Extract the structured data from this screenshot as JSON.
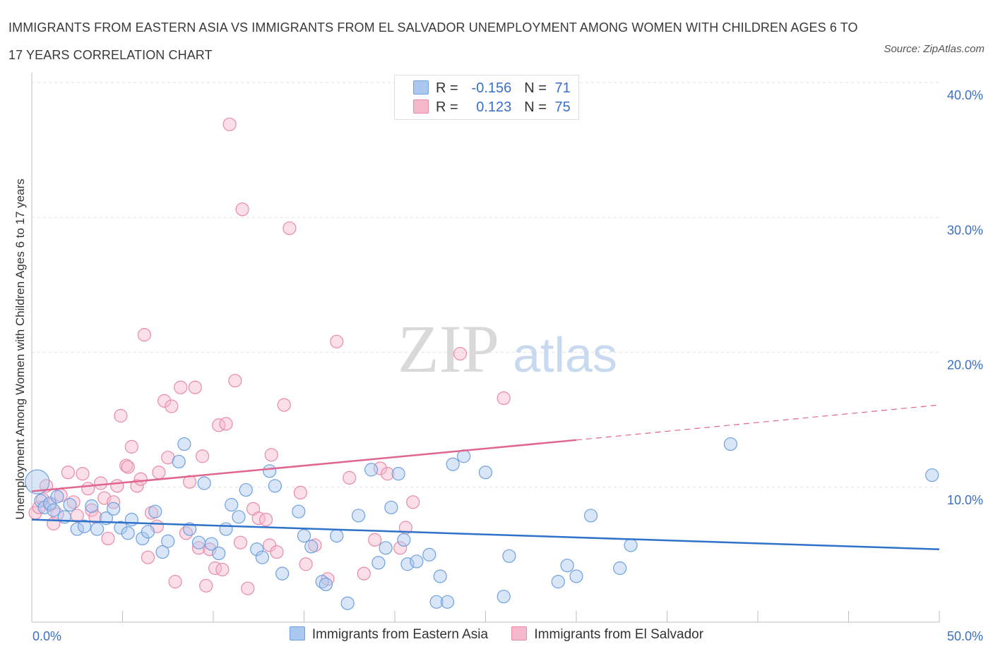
{
  "header": {
    "title": "IMMIGRANTS FROM EASTERN ASIA VS IMMIGRANTS FROM EL SALVADOR UNEMPLOYMENT AMONG WOMEN WITH CHILDREN AGES 6 TO 17 YEARS CORRELATION CHART",
    "source": "Source: ZipAtlas.com"
  },
  "watermark": {
    "zip": "ZIP",
    "atlas": "atlas"
  },
  "legend": {
    "rows": [
      {
        "r_label": "R =",
        "r_value": "-0.156",
        "n_label": "N =",
        "n_value": "71",
        "color": "#aac8f0"
      },
      {
        "r_label": "R =",
        "r_value": "0.123",
        "n_label": "N =",
        "n_value": "75",
        "color": "#f6b8cb"
      }
    ]
  },
  "colors": {
    "blue_fill": "#aac8f0",
    "blue_stroke": "#6fa0de",
    "blue_line": "#2e72c9",
    "pink_fill": "#f6b8cb",
    "pink_stroke": "#e98aa8",
    "pink_line": "#e0668f",
    "axis_text": "#3b6fc4",
    "grid": "#dde1e8"
  },
  "chart_data": {
    "type": "scatter",
    "title": "IMMIGRANTS FROM EASTERN ASIA VS IMMIGRANTS FROM EL SALVADOR UNEMPLOYMENT AMONG WOMEN WITH CHILDREN AGES 6 TO 17 YEARS CORRELATION CHART",
    "xlabel": "",
    "ylabel": "Unemployment Among Women with Children Ages 6 to 17 years",
    "xlim": [
      0,
      50
    ],
    "ylim": [
      0,
      40
    ],
    "x_tick_labels": [
      {
        "value": 0,
        "label": "0.0%"
      },
      {
        "value": 50,
        "label": "50.0%"
      }
    ],
    "y_tick_labels": [
      {
        "value": 10,
        "label": "10.0%"
      },
      {
        "value": 20,
        "label": "20.0%"
      },
      {
        "value": 30,
        "label": "30.0%"
      },
      {
        "value": 40,
        "label": "40.0%"
      }
    ],
    "grid": true,
    "legend_position": "bottom",
    "series": [
      {
        "name": "Immigrants from Eastern Asia",
        "color": "#aac8f0",
        "r": -0.156,
        "n": 71,
        "trend": {
          "x": [
            0,
            50
          ],
          "y": [
            7.6,
            5.4
          ]
        },
        "points": [
          [
            0.3,
            10.4
          ],
          [
            0.5,
            9.0
          ],
          [
            0.7,
            8.5
          ],
          [
            1.0,
            8.8
          ],
          [
            1.2,
            8.3
          ],
          [
            1.4,
            9.3
          ],
          [
            1.8,
            7.8
          ],
          [
            2.1,
            8.7
          ],
          [
            2.5,
            6.9
          ],
          [
            2.9,
            7.1
          ],
          [
            3.3,
            8.6
          ],
          [
            3.6,
            6.9
          ],
          [
            4.1,
            7.7
          ],
          [
            4.5,
            8.4
          ],
          [
            4.9,
            7.0
          ],
          [
            5.3,
            6.6
          ],
          [
            5.5,
            7.6
          ],
          [
            6.1,
            6.2
          ],
          [
            6.4,
            6.7
          ],
          [
            6.8,
            8.2
          ],
          [
            7.2,
            5.2
          ],
          [
            7.5,
            6.0
          ],
          [
            8.1,
            11.9
          ],
          [
            8.4,
            13.2
          ],
          [
            8.7,
            6.9
          ],
          [
            9.2,
            5.9
          ],
          [
            9.5,
            10.3
          ],
          [
            9.9,
            5.8
          ],
          [
            10.3,
            5.1
          ],
          [
            10.7,
            6.9
          ],
          [
            11.0,
            8.7
          ],
          [
            11.4,
            7.8
          ],
          [
            11.8,
            9.8
          ],
          [
            12.4,
            5.4
          ],
          [
            12.7,
            4.8
          ],
          [
            13.1,
            11.2
          ],
          [
            13.4,
            10.1
          ],
          [
            13.8,
            3.6
          ],
          [
            14.7,
            8.2
          ],
          [
            15.0,
            6.4
          ],
          [
            15.4,
            5.6
          ],
          [
            16.0,
            3.0
          ],
          [
            16.2,
            2.8
          ],
          [
            16.8,
            6.4
          ],
          [
            17.4,
            1.4
          ],
          [
            18.0,
            7.9
          ],
          [
            18.7,
            11.3
          ],
          [
            19.1,
            4.4
          ],
          [
            19.5,
            5.5
          ],
          [
            19.8,
            8.5
          ],
          [
            20.2,
            11.0
          ],
          [
            20.5,
            6.1
          ],
          [
            20.7,
            4.3
          ],
          [
            21.2,
            4.5
          ],
          [
            21.9,
            5.0
          ],
          [
            22.3,
            1.5
          ],
          [
            22.5,
            3.4
          ],
          [
            22.9,
            1.5
          ],
          [
            23.2,
            11.7
          ],
          [
            23.8,
            12.3
          ],
          [
            25.0,
            11.1
          ],
          [
            26.0,
            1.9
          ],
          [
            26.3,
            4.9
          ],
          [
            29.0,
            3.0
          ],
          [
            29.5,
            4.2
          ],
          [
            30.0,
            3.4
          ],
          [
            30.8,
            7.9
          ],
          [
            32.4,
            4.0
          ],
          [
            33.0,
            5.7
          ],
          [
            38.5,
            13.2
          ],
          [
            49.6,
            10.9
          ]
        ]
      },
      {
        "name": "Immigrants from El Salvador",
        "color": "#f6b8cb",
        "r": 0.123,
        "n": 75,
        "trend": {
          "x": [
            0,
            30
          ],
          "y": [
            9.7,
            13.5
          ]
        },
        "trend_extrapolated": {
          "x": [
            30,
            50
          ],
          "y": [
            13.5,
            16.1
          ]
        },
        "points": [
          [
            0.2,
            8.1
          ],
          [
            0.4,
            8.5
          ],
          [
            0.6,
            9.1
          ],
          [
            0.8,
            10.1
          ],
          [
            1.0,
            8.7
          ],
          [
            1.2,
            7.3
          ],
          [
            1.4,
            8.0
          ],
          [
            1.6,
            9.4
          ],
          [
            2.0,
            11.1
          ],
          [
            2.3,
            8.9
          ],
          [
            2.5,
            7.9
          ],
          [
            2.8,
            11.0
          ],
          [
            3.1,
            9.9
          ],
          [
            3.3,
            8.3
          ],
          [
            3.5,
            7.8
          ],
          [
            3.8,
            10.3
          ],
          [
            4.0,
            9.2
          ],
          [
            4.2,
            6.2
          ],
          [
            4.5,
            8.9
          ],
          [
            4.7,
            10.1
          ],
          [
            4.9,
            15.3
          ],
          [
            5.2,
            11.6
          ],
          [
            5.3,
            11.5
          ],
          [
            5.5,
            13.0
          ],
          [
            5.8,
            10.1
          ],
          [
            6.0,
            10.6
          ],
          [
            6.2,
            21.3
          ],
          [
            6.4,
            4.8
          ],
          [
            6.6,
            8.1
          ],
          [
            6.9,
            7.1
          ],
          [
            7.0,
            11.1
          ],
          [
            7.3,
            16.4
          ],
          [
            7.5,
            12.2
          ],
          [
            7.7,
            16.0
          ],
          [
            7.9,
            3.0
          ],
          [
            8.2,
            17.4
          ],
          [
            8.5,
            6.6
          ],
          [
            8.7,
            10.4
          ],
          [
            9.0,
            17.4
          ],
          [
            9.2,
            5.5
          ],
          [
            9.4,
            12.3
          ],
          [
            9.6,
            2.7
          ],
          [
            9.8,
            5.4
          ],
          [
            10.1,
            4.0
          ],
          [
            10.3,
            14.6
          ],
          [
            10.5,
            3.9
          ],
          [
            10.7,
            14.7
          ],
          [
            10.9,
            36.9
          ],
          [
            11.2,
            17.9
          ],
          [
            11.5,
            5.9
          ],
          [
            11.6,
            30.6
          ],
          [
            11.9,
            2.5
          ],
          [
            12.2,
            8.4
          ],
          [
            12.5,
            7.7
          ],
          [
            12.9,
            7.6
          ],
          [
            13.1,
            5.7
          ],
          [
            13.2,
            12.4
          ],
          [
            13.5,
            5.2
          ],
          [
            13.9,
            16.1
          ],
          [
            14.2,
            29.2
          ],
          [
            14.8,
            9.6
          ],
          [
            15.1,
            4.3
          ],
          [
            15.6,
            5.7
          ],
          [
            16.3,
            3.2
          ],
          [
            16.8,
            20.8
          ],
          [
            17.5,
            10.7
          ],
          [
            18.3,
            3.6
          ],
          [
            18.9,
            6.1
          ],
          [
            19.2,
            11.4
          ],
          [
            19.6,
            11.0
          ],
          [
            20.3,
            5.5
          ],
          [
            20.6,
            7.0
          ],
          [
            21.0,
            8.9
          ],
          [
            23.6,
            19.9
          ],
          [
            26.0,
            16.6
          ]
        ]
      }
    ]
  }
}
